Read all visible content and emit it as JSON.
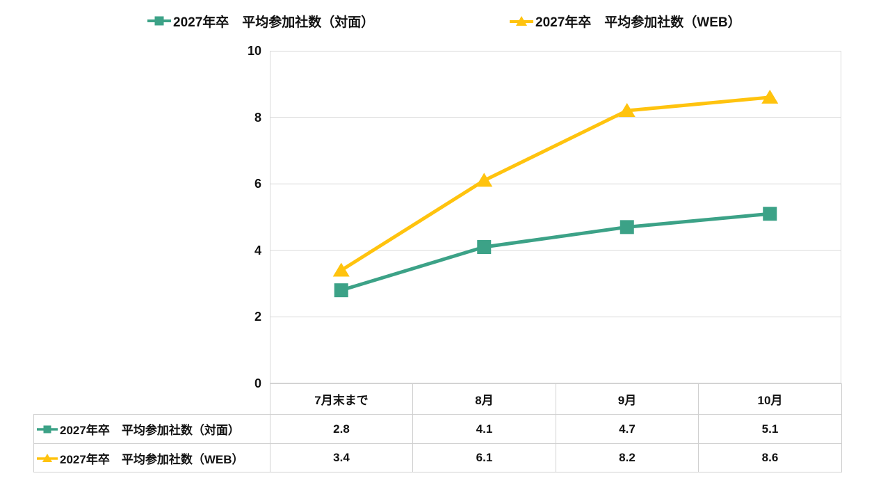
{
  "chart_data": {
    "type": "line",
    "title": "",
    "categories": [
      "7月末まで",
      "8月",
      "9月",
      "10月"
    ],
    "series": [
      {
        "name": "2027年卒　平均参加社数（対面）",
        "values": [
          2.8,
          4.1,
          4.7,
          5.1
        ],
        "color": "#3CA287",
        "marker": "square"
      },
      {
        "name": "2027年卒　平均参加社数（WEB）",
        "values": [
          3.4,
          6.1,
          8.2,
          8.6
        ],
        "color": "#FFC30E",
        "marker": "triangle"
      }
    ],
    "y_ticks": [
      0,
      2,
      4,
      6,
      8,
      10
    ],
    "ylim": [
      0,
      10
    ],
    "grid": true,
    "grid_color": "#D9D9D9",
    "legend_position": "top",
    "has_data_table": true
  },
  "colors": {
    "series_taimen": "#3CA287",
    "series_web": "#FFC30E",
    "grid": "#D9D9D9",
    "table_border": "#D0D0D0",
    "text": "#111111"
  }
}
